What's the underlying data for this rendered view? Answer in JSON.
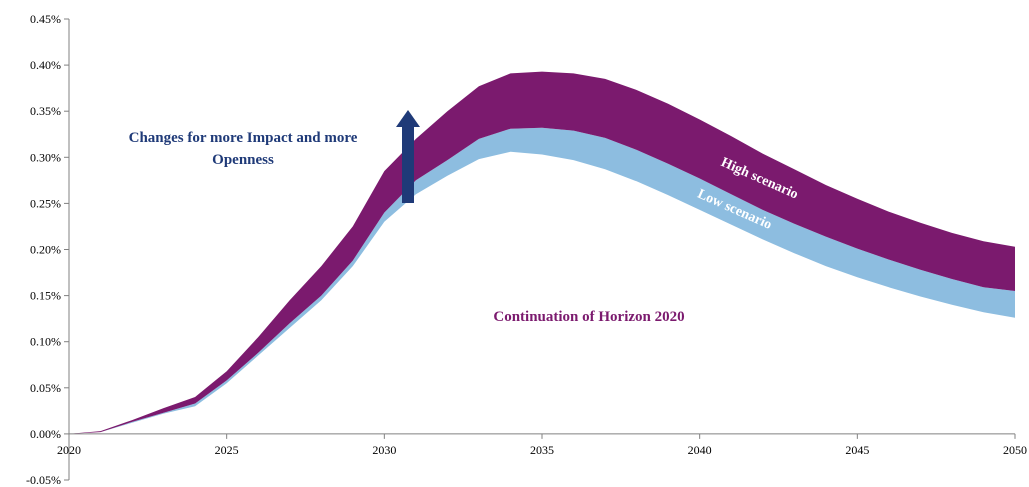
{
  "chart_data": {
    "type": "area",
    "x": [
      2020,
      2021,
      2022,
      2023,
      2024,
      2025,
      2026,
      2027,
      2028,
      2029,
      2030,
      2031,
      2032,
      2033,
      2034,
      2035,
      2036,
      2037,
      2038,
      2039,
      2040,
      2041,
      2042,
      2043,
      2044,
      2045,
      2046,
      2047,
      2048,
      2049,
      2050
    ],
    "series": [
      {
        "key": "base",
        "values": [
          0.0,
          2e-05,
          0.00012,
          0.00022,
          0.0003,
          0.00055,
          0.00085,
          0.00115,
          0.00145,
          0.00182,
          0.0023,
          0.0026,
          0.0028,
          0.00298,
          0.00306,
          0.00303,
          0.00297,
          0.00287,
          0.00274,
          0.00259,
          0.00243,
          0.00227,
          0.00211,
          0.00196,
          0.00182,
          0.0017,
          0.00159,
          0.00149,
          0.0014,
          0.00132,
          0.00126
        ]
      },
      {
        "key": "low",
        "values": [
          0.0,
          2e-05,
          0.00013,
          0.00023,
          0.00033,
          0.00058,
          0.00088,
          0.0012,
          0.0015,
          0.00188,
          0.0024,
          0.00275,
          0.00297,
          0.0032,
          0.00331,
          0.00332,
          0.00329,
          0.00321,
          0.00308,
          0.00293,
          0.00277,
          0.0026,
          0.00243,
          0.00228,
          0.00214,
          0.00201,
          0.00189,
          0.00178,
          0.00168,
          0.00159,
          0.00155
        ]
      },
      {
        "key": "high",
        "values": [
          0.0,
          3e-05,
          0.00015,
          0.00028,
          0.0004,
          0.00068,
          0.00105,
          0.00145,
          0.00182,
          0.00225,
          0.00285,
          0.0032,
          0.0035,
          0.00377,
          0.00391,
          0.00393,
          0.00391,
          0.00385,
          0.00373,
          0.00358,
          0.00341,
          0.00323,
          0.00304,
          0.00287,
          0.0027,
          0.00255,
          0.00241,
          0.00229,
          0.00218,
          0.00209,
          0.00203
        ]
      }
    ],
    "ylim": [
      -0.0005,
      0.0045
    ],
    "yticks": [
      "-0.05%",
      "0.00%",
      "0.05%",
      "0.10%",
      "0.15%",
      "0.20%",
      "0.25%",
      "0.30%",
      "0.35%",
      "0.40%",
      "0.45%"
    ],
    "ytick_values": [
      -0.0005,
      0.0,
      0.0005,
      0.001,
      0.0015,
      0.002,
      0.0025,
      0.003,
      0.0035,
      0.004,
      0.0045
    ],
    "xticks": [
      "2020",
      "2025",
      "2030",
      "2035",
      "2040",
      "2045",
      "2050"
    ],
    "xtick_values": [
      2020,
      2025,
      2030,
      2035,
      2040,
      2045,
      2050
    ],
    "grid": false,
    "colors": {
      "high_band": "#7b1a6e",
      "low_band": "#8dbde0",
      "arrow": "#1f3a78"
    },
    "annotations": {
      "changes_line1": "Changes for more Impact and more",
      "changes_line2": "Openness",
      "continuation": "Continuation of Horizon 2020",
      "high_label": "High scenario",
      "low_label": "Low scenario"
    }
  }
}
